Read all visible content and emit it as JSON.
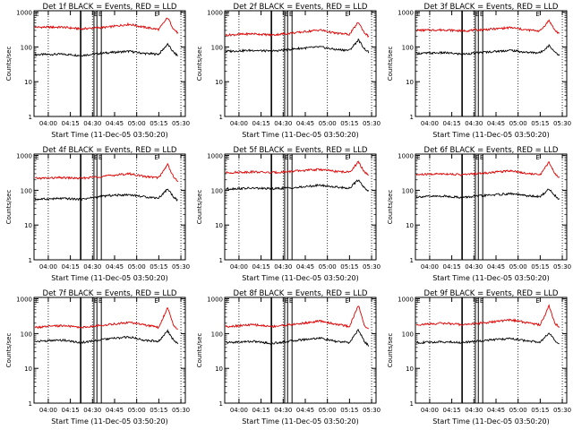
{
  "figure": {
    "xtick_labels": [
      "04:00",
      "04:15",
      "04:30",
      "04:45",
      "05:00",
      "05:15",
      "05:30"
    ],
    "ytick_labels": [
      "1",
      "10",
      "100",
      "1000"
    ],
    "colors": {
      "events": "#000000",
      "lld": "#e00000",
      "axes": "#000000",
      "background": "#ffffff"
    }
  },
  "chart_data": [
    {
      "type": "line",
      "title": "Det 1f BLACK = Events, RED = LLD",
      "xlabel": "Start Time (11-Dec-05 03:50:20)",
      "ylabel": "Counts/sec",
      "yscale": "log",
      "ylim": [
        1,
        1100
      ],
      "xlim": [
        "03:50:20",
        "05:33:00"
      ],
      "dotted_lines_at": [
        "04:00",
        "04:30",
        "05:00",
        "05:30"
      ],
      "solid_lines_at": [
        "04:22",
        "04:31",
        "04:33",
        "04:36"
      ],
      "markers_at": [
        "03:51",
        "04:31",
        "04:34",
        "05:12"
      ],
      "marker_text": "E",
      "x": [
        "03:51",
        "04:10",
        "04:22",
        "04:40",
        "04:55",
        "05:05",
        "05:15",
        "05:21",
        "05:25",
        "05:28"
      ],
      "series": [
        {
          "name": "Events",
          "color": "#000000",
          "values": [
            60,
            62,
            57,
            68,
            75,
            65,
            62,
            120,
            70,
            55
          ]
        },
        {
          "name": "LLD",
          "color": "#e00000",
          "values": [
            370,
            370,
            330,
            370,
            450,
            370,
            320,
            700,
            330,
            250
          ]
        }
      ]
    },
    {
      "type": "line",
      "title": "Det 2f BLACK = Events, RED = LLD",
      "xlabel": "Start Time (11-Dec-05 03:50:20)",
      "ylabel": "Counts/sec",
      "yscale": "log",
      "ylim": [
        1,
        1100
      ],
      "xlim": [
        "03:50:20",
        "05:33:00"
      ],
      "dotted_lines_at": [
        "04:00",
        "04:30",
        "05:00",
        "05:30"
      ],
      "solid_lines_at": [
        "04:22",
        "04:31",
        "04:33",
        "04:36"
      ],
      "markers_at": [
        "03:51",
        "04:31",
        "04:34",
        "05:12"
      ],
      "marker_text": "E",
      "x": [
        "03:51",
        "04:10",
        "04:22",
        "04:40",
        "04:55",
        "05:05",
        "05:15",
        "05:21",
        "05:25",
        "05:28"
      ],
      "series": [
        {
          "name": "Events",
          "color": "#000000",
          "values": [
            75,
            80,
            75,
            90,
            100,
            85,
            80,
            160,
            90,
            70
          ]
        },
        {
          "name": "LLD",
          "color": "#e00000",
          "values": [
            220,
            240,
            220,
            260,
            310,
            250,
            230,
            520,
            260,
            200
          ]
        }
      ]
    },
    {
      "type": "line",
      "title": "Det 3f BLACK = Events, RED = LLD",
      "xlabel": "Start Time (11-Dec-05 03:50:20)",
      "ylabel": "Counts/sec",
      "yscale": "log",
      "ylim": [
        1,
        1100
      ],
      "xlim": [
        "03:50:20",
        "05:33:00"
      ],
      "dotted_lines_at": [
        "04:00",
        "04:30",
        "05:00",
        "05:30"
      ],
      "solid_lines_at": [
        "04:22",
        "04:31",
        "04:33",
        "04:36"
      ],
      "markers_at": [
        "03:51",
        "04:31",
        "04:34",
        "05:12"
      ],
      "marker_text": "E",
      "x": [
        "03:51",
        "04:10",
        "04:22",
        "04:40",
        "04:55",
        "05:05",
        "05:15",
        "05:21",
        "05:25",
        "05:28"
      ],
      "series": [
        {
          "name": "Events",
          "color": "#000000",
          "values": [
            65,
            68,
            62,
            72,
            80,
            70,
            68,
            110,
            72,
            58
          ]
        },
        {
          "name": "LLD",
          "color": "#e00000",
          "values": [
            300,
            310,
            290,
            320,
            360,
            310,
            290,
            580,
            300,
            240
          ]
        }
      ]
    },
    {
      "type": "line",
      "title": "Det 4f BLACK = Events, RED = LLD",
      "xlabel": "Start Time (11-Dec-05 03:50:20)",
      "ylabel": "Counts/sec",
      "yscale": "log",
      "ylim": [
        1,
        1100
      ],
      "xlim": [
        "03:50:20",
        "05:33:00"
      ],
      "dotted_lines_at": [
        "04:00",
        "04:30",
        "05:00",
        "05:30"
      ],
      "solid_lines_at": [
        "04:22",
        "04:31",
        "04:33",
        "04:36"
      ],
      "markers_at": [
        "03:51",
        "04:31",
        "04:34",
        "05:12"
      ],
      "marker_text": "E",
      "x": [
        "03:51",
        "04:10",
        "04:22",
        "04:40",
        "04:55",
        "05:05",
        "05:15",
        "05:21",
        "05:25",
        "05:28"
      ],
      "series": [
        {
          "name": "Events",
          "color": "#000000",
          "values": [
            55,
            58,
            55,
            70,
            75,
            65,
            60,
            110,
            65,
            50
          ]
        },
        {
          "name": "LLD",
          "color": "#e00000",
          "values": [
            220,
            230,
            220,
            260,
            300,
            250,
            230,
            560,
            240,
            180
          ]
        }
      ]
    },
    {
      "type": "line",
      "title": "Det 5f BLACK = Events, RED = LLD",
      "xlabel": "Start Time (11-Dec-05 03:50:20)",
      "ylabel": "Counts/sec",
      "yscale": "log",
      "ylim": [
        1,
        1100
      ],
      "xlim": [
        "03:50:20",
        "05:33:00"
      ],
      "dotted_lines_at": [
        "04:00",
        "04:30",
        "05:00",
        "05:30"
      ],
      "solid_lines_at": [
        "04:22",
        "04:31",
        "04:33",
        "04:36"
      ],
      "markers_at": [
        "03:51",
        "04:31",
        "04:34",
        "05:12"
      ],
      "marker_text": "E",
      "x": [
        "03:51",
        "04:10",
        "04:22",
        "04:40",
        "04:55",
        "05:05",
        "05:15",
        "05:21",
        "05:25",
        "05:28"
      ],
      "series": [
        {
          "name": "Events",
          "color": "#000000",
          "values": [
            110,
            115,
            110,
            120,
            140,
            125,
            115,
            200,
            120,
            95
          ]
        },
        {
          "name": "LLD",
          "color": "#e00000",
          "values": [
            320,
            340,
            320,
            360,
            400,
            350,
            330,
            650,
            340,
            280
          ]
        }
      ]
    },
    {
      "type": "line",
      "title": "Det 6f BLACK = Events, RED = LLD",
      "xlabel": "Start Time (11-Dec-05 03:50:20)",
      "ylabel": "Counts/sec",
      "yscale": "log",
      "ylim": [
        1,
        1100
      ],
      "xlim": [
        "03:50:20",
        "05:33:00"
      ],
      "dotted_lines_at": [
        "04:00",
        "04:30",
        "05:00",
        "05:30"
      ],
      "solid_lines_at": [
        "04:22",
        "04:31",
        "04:33",
        "04:36"
      ],
      "markers_at": [
        "03:51",
        "04:31",
        "04:34",
        "05:12"
      ],
      "marker_text": "E",
      "x": [
        "03:51",
        "04:10",
        "04:22",
        "04:40",
        "04:55",
        "05:05",
        "05:15",
        "05:21",
        "05:25",
        "05:28"
      ],
      "series": [
        {
          "name": "Events",
          "color": "#000000",
          "values": [
            65,
            68,
            62,
            72,
            80,
            70,
            65,
            110,
            70,
            55
          ]
        },
        {
          "name": "LLD",
          "color": "#e00000",
          "values": [
            280,
            300,
            280,
            320,
            370,
            310,
            280,
            650,
            300,
            230
          ]
        }
      ]
    },
    {
      "type": "line",
      "title": "Det 7f BLACK = Events, RED = LLD",
      "xlabel": "Start Time (11-Dec-05 03:50:20)",
      "ylabel": "Counts/sec",
      "yscale": "log",
      "ylim": [
        1,
        1100
      ],
      "xlim": [
        "03:50:20",
        "05:33:00"
      ],
      "dotted_lines_at": [
        "04:00",
        "04:30",
        "05:00",
        "05:30"
      ],
      "solid_lines_at": [
        "04:22",
        "04:31",
        "04:33",
        "04:36"
      ],
      "markers_at": [
        "03:51",
        "04:31",
        "04:34",
        "05:12"
      ],
      "marker_text": "E",
      "x": [
        "03:51",
        "04:10",
        "04:22",
        "04:40",
        "04:55",
        "05:05",
        "05:15",
        "05:21",
        "05:25",
        "05:28"
      ],
      "series": [
        {
          "name": "Events",
          "color": "#000000",
          "values": [
            60,
            65,
            55,
            70,
            80,
            65,
            60,
            120,
            65,
            50
          ]
        },
        {
          "name": "LLD",
          "color": "#e00000",
          "values": [
            150,
            170,
            150,
            180,
            210,
            180,
            150,
            560,
            180,
            130
          ]
        }
      ]
    },
    {
      "type": "line",
      "title": "Det 8f BLACK = Events, RED = LLD",
      "xlabel": "Start Time (11-Dec-05 03:50:20)",
      "ylabel": "Counts/sec",
      "yscale": "log",
      "ylim": [
        1,
        1100
      ],
      "xlim": [
        "03:50:20",
        "05:33:00"
      ],
      "dotted_lines_at": [
        "04:00",
        "04:30",
        "05:00",
        "05:30"
      ],
      "solid_lines_at": [
        "04:22",
        "04:31",
        "04:33",
        "04:36"
      ],
      "markers_at": [
        "03:51",
        "04:31",
        "04:34",
        "05:12"
      ],
      "marker_text": "E",
      "x": [
        "03:51",
        "04:10",
        "04:22",
        "04:40",
        "04:55",
        "05:05",
        "05:15",
        "05:21",
        "05:25",
        "05:28"
      ],
      "series": [
        {
          "name": "Events",
          "color": "#000000",
          "values": [
            55,
            60,
            52,
            65,
            75,
            60,
            55,
            130,
            60,
            45
          ]
        },
        {
          "name": "LLD",
          "color": "#e00000",
          "values": [
            160,
            180,
            160,
            190,
            230,
            190,
            160,
            650,
            180,
            130
          ]
        }
      ]
    },
    {
      "type": "line",
      "title": "Det 9f BLACK = Events, RED = LLD",
      "xlabel": "Start Time (11-Dec-05 03:50:20)",
      "ylabel": "Counts/sec",
      "yscale": "log",
      "ylim": [
        1,
        1100
      ],
      "xlim": [
        "03:50:20",
        "05:33:00"
      ],
      "dotted_lines_at": [
        "04:00",
        "04:30",
        "05:00",
        "05:30"
      ],
      "solid_lines_at": [
        "04:22",
        "04:31",
        "04:33",
        "04:36"
      ],
      "markers_at": [
        "03:51",
        "04:31",
        "04:34",
        "05:12"
      ],
      "marker_text": "E",
      "x": [
        "03:51",
        "04:10",
        "04:22",
        "04:40",
        "04:55",
        "05:05",
        "05:15",
        "05:21",
        "05:25",
        "05:28"
      ],
      "series": [
        {
          "name": "Events",
          "color": "#000000",
          "values": [
            55,
            58,
            55,
            65,
            72,
            62,
            58,
            105,
            62,
            48
          ]
        },
        {
          "name": "LLD",
          "color": "#e00000",
          "values": [
            180,
            200,
            180,
            210,
            250,
            210,
            180,
            620,
            200,
            150
          ]
        }
      ]
    }
  ]
}
